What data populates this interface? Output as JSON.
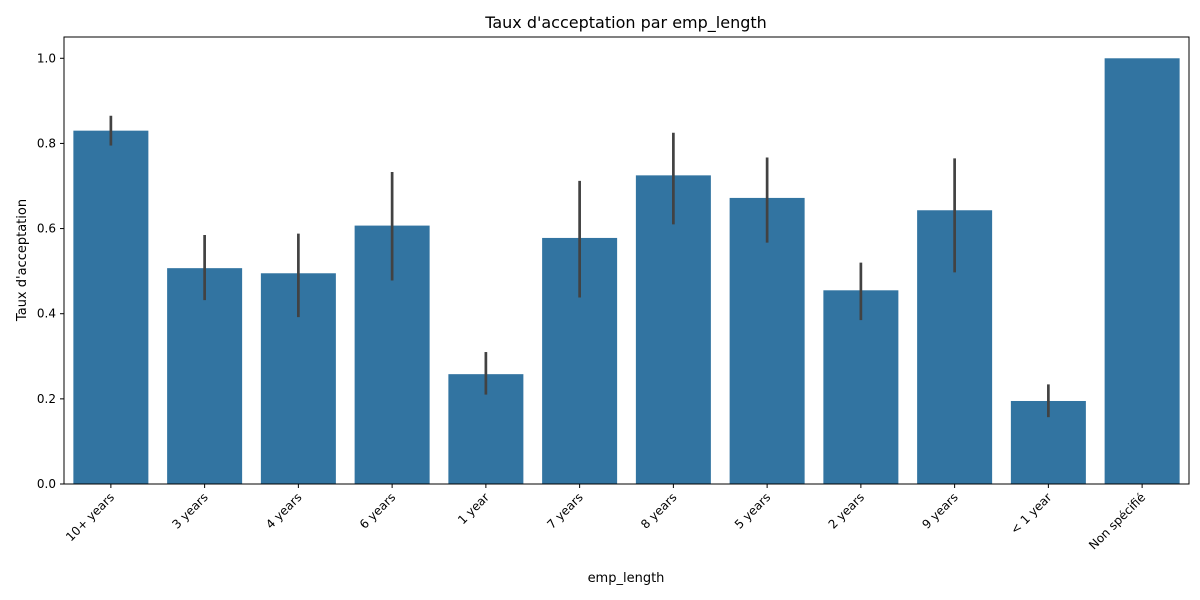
{
  "chart_data": {
    "type": "bar",
    "title": "Taux d'acceptation par emp_length",
    "xlabel": "emp_length",
    "ylabel": "Taux d'acceptation",
    "ylim": [
      0,
      1.05
    ],
    "yticks": [
      "0.0",
      "0.2",
      "0.4",
      "0.6",
      "0.8",
      "1.0"
    ],
    "categories": [
      "10+ years",
      "3 years",
      "4 years",
      "6 years",
      "1 year",
      "7 years",
      "8 years",
      "5 years",
      "2 years",
      "9 years",
      "< 1 year",
      "Non spécifié"
    ],
    "values": [
      0.83,
      0.507,
      0.495,
      0.607,
      0.258,
      0.578,
      0.725,
      0.672,
      0.455,
      0.643,
      0.195,
      1.0
    ],
    "error_low": [
      0.795,
      0.432,
      0.392,
      0.478,
      0.21,
      0.438,
      0.61,
      0.567,
      0.385,
      0.497,
      0.157,
      1.0
    ],
    "error_high": [
      0.865,
      0.585,
      0.588,
      0.733,
      0.31,
      0.712,
      0.825,
      0.767,
      0.52,
      0.765,
      0.234,
      1.0
    ],
    "bar_color": "#3274a1",
    "error_color": "#424242",
    "grid": false,
    "legend": "none"
  }
}
